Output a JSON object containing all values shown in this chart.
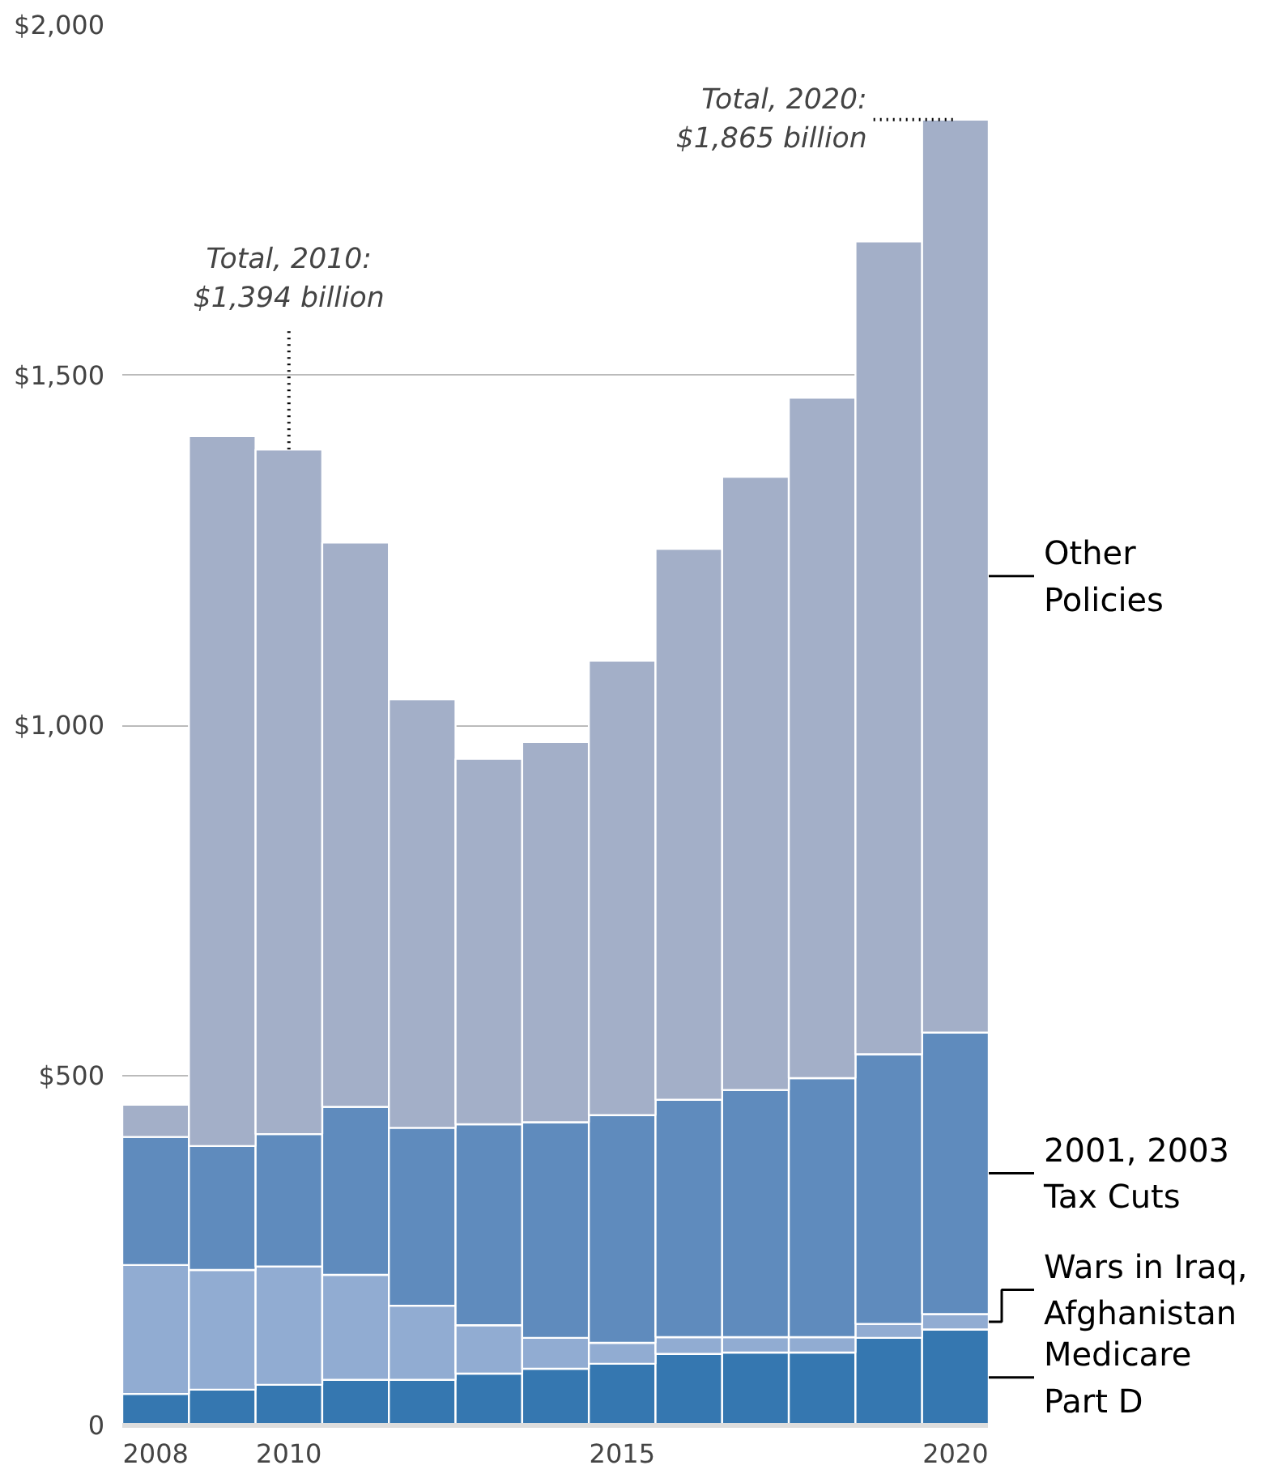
{
  "chart_data": {
    "type": "bar",
    "stacked": true,
    "x": [
      2008,
      2009,
      2010,
      2011,
      2012,
      2013,
      2014,
      2015,
      2016,
      2017,
      2018,
      2019,
      2020
    ],
    "series": [
      {
        "name": "Medicare\nPart D",
        "color": "#3577b0",
        "values": [
          45,
          51,
          58,
          65,
          65,
          74,
          81,
          88,
          102,
          104,
          104,
          125,
          137
        ]
      },
      {
        "name": "Wars in Iraq,\nAfghanistan",
        "color": "#91acd2",
        "values": [
          184,
          171,
          169,
          150,
          106,
          69,
          44,
          30,
          24,
          22,
          22,
          20,
          22
        ]
      },
      {
        "name": "2001, 2003\nTax Cuts",
        "color": "#5f8bbd",
        "values": [
          183,
          177,
          189,
          240,
          254,
          287,
          308,
          325,
          339,
          353,
          370,
          385,
          402
        ]
      },
      {
        "name": "Other\nPolicies",
        "color": "#a3afc8",
        "values": [
          46,
          1014,
          978,
          806,
          612,
          522,
          543,
          649,
          787,
          876,
          972,
          1161,
          1304
        ]
      }
    ],
    "xlim": [
      2007.5,
      2020.5
    ],
    "xticks": [
      2008,
      2010,
      2015,
      2020
    ],
    "ylim": [
      0,
      2000
    ],
    "yticks": [
      {
        "value": 0,
        "label": "0"
      },
      {
        "value": 500,
        "label": "$500"
      },
      {
        "value": 1000,
        "label": "$1,000"
      },
      {
        "value": 1500,
        "label": "$1,500"
      },
      {
        "value": 2000,
        "label": "$2,000"
      }
    ],
    "grid": "y",
    "annotations": [
      {
        "text": "Total, 2010:\n$1,394 billion",
        "x": 2010,
        "y": 1394
      },
      {
        "text": "Total, 2020:\n$1,865 billion",
        "x": 2020,
        "y": 1865
      }
    ]
  }
}
